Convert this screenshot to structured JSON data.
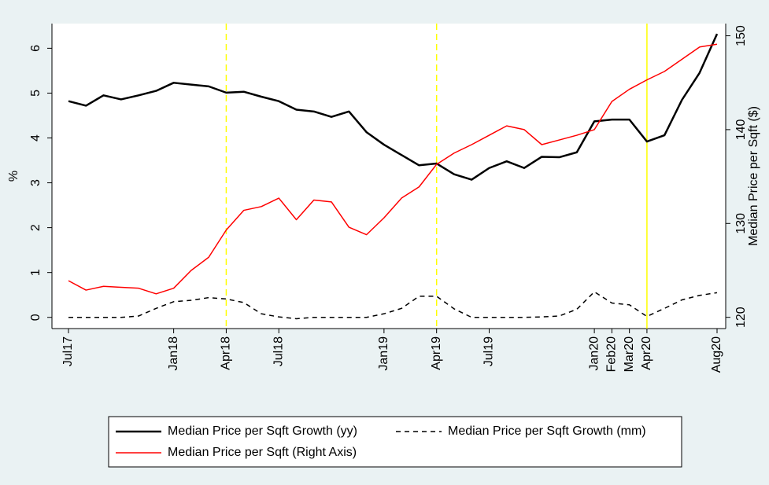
{
  "chart_data": {
    "type": "line",
    "categories": [
      "Jul17",
      null,
      null,
      null,
      null,
      null,
      "Jan18",
      null,
      null,
      "Apr18",
      null,
      null,
      "Jul18",
      null,
      null,
      null,
      null,
      null,
      "Jan19",
      null,
      null,
      "Apr19",
      null,
      null,
      "Jul19",
      null,
      null,
      null,
      null,
      null,
      "Jan20",
      "Feb20",
      "Mar20",
      "Apr20",
      null,
      null,
      null,
      "Aug20"
    ],
    "series": [
      {
        "name": "Median Price per Sqft Growth (yy)",
        "color": "#000000",
        "dash": false,
        "width": 2.5,
        "values": [
          4.82,
          4.72,
          4.95,
          4.86,
          4.95,
          5.05,
          5.23,
          5.19,
          5.15,
          5.01,
          5.03,
          4.92,
          4.82,
          4.63,
          4.59,
          4.47,
          4.59,
          4.13,
          3.85,
          3.62,
          3.39,
          3.43,
          3.19,
          3.07,
          3.33,
          3.48,
          3.33,
          3.58,
          3.57,
          3.68,
          4.37,
          4.41,
          4.41,
          3.92,
          4.06,
          4.85,
          5.45,
          6.32
        ]
      },
      {
        "name": "Median Price per Sqft Growth (mm)",
        "color": "#000000",
        "dash": true,
        "width": 1.5,
        "values": [
          0,
          0,
          0,
          0,
          0.03,
          0.2,
          0.35,
          0.38,
          0.44,
          0.41,
          0.33,
          0.08,
          0.01,
          -0.03,
          0,
          0,
          0,
          0,
          0.08,
          0.2,
          0.47,
          0.47,
          0.19,
          0,
          0,
          0,
          0,
          0.01,
          0.03,
          0.18,
          0.57,
          0.32,
          0.28,
          0.02,
          0.2,
          0.39,
          0.49,
          0.55
        ]
      },
      {
        "name": "Median Price per Sqft (Right Axis)",
        "color": "#ff0000",
        "dash": false,
        "width": 1.5,
        "axis": "y2",
        "values": [
          123.9,
          122.9,
          123.3,
          123.2,
          123.1,
          122.5,
          123.1,
          125.0,
          126.4,
          129.3,
          131.4,
          131.8,
          132.7,
          130.4,
          132.5,
          132.3,
          129.6,
          128.8,
          130.6,
          132.7,
          133.9,
          136.3,
          137.5,
          138.4,
          139.4,
          140.4,
          140.0,
          138.4,
          138.9,
          139.4,
          140.0,
          143.0,
          144.3,
          145.3,
          146.2,
          147.5,
          148.8,
          149.1
        ]
      }
    ],
    "ylabel": "%",
    "y2label": "Median Price per Sqft ($)",
    "ylim": [
      -0.25,
      6.55
    ],
    "yticks": [
      0,
      1,
      2,
      3,
      4,
      5,
      6
    ],
    "y2lim": [
      118.8,
      151.3
    ],
    "y2ticks": [
      120,
      130,
      140,
      150
    ],
    "vlines": [
      {
        "x": 9,
        "dash": true,
        "color": "#ffff00"
      },
      {
        "x": 21,
        "dash": true,
        "color": "#ffff00"
      },
      {
        "x": 33,
        "dash": false,
        "color": "#ffff00"
      }
    ],
    "grid": false,
    "legend": "bottom"
  }
}
